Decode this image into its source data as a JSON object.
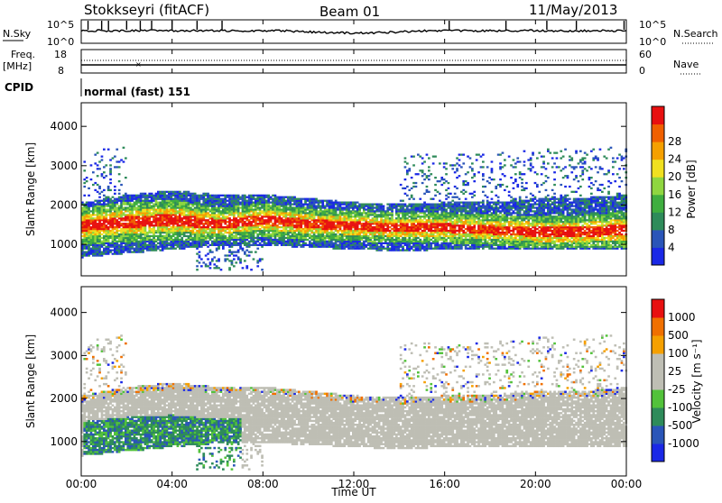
{
  "header": {
    "station": "Stokkseyri (fitACF)",
    "beam": "Beam 01",
    "date": "11/May/2013"
  },
  "time_axis": {
    "label": "Time UT",
    "ticks": [
      "00:00",
      "04:00",
      "08:00",
      "12:00",
      "16:00",
      "20:00",
      "00:00"
    ],
    "range_hours": [
      0,
      24
    ]
  },
  "top_panel": {
    "nsky_label": "N.Sky",
    "nsky_ticks": [
      "10^5",
      "10^0"
    ],
    "nsearch_label": "N.Search",
    "freq_label_1": "Freq.",
    "freq_label_2": "[MHz]",
    "freq_ticks": [
      "18",
      "8"
    ],
    "nave_label": "Nave",
    "nave_ticks": [
      "60",
      "0"
    ],
    "cpid_label": "CPID",
    "cpid_value": "normal (fast) 151"
  },
  "chart_data": [
    {
      "type": "heatmap",
      "name": "power",
      "ylabel": "Slant Range [km]",
      "y_ticks": [
        1000,
        2000,
        3000,
        4000
      ],
      "ylim": [
        200,
        4600
      ],
      "xlim": [
        0,
        24
      ],
      "colorbar_label": "Power [dB]",
      "colorbar_ticks": [
        "4",
        "8",
        "12",
        "16",
        "20",
        "24",
        "28"
      ],
      "colorbar_colors": [
        "#1a28e6",
        "#2a55b8",
        "#2e8b5a",
        "#3fae3f",
        "#8fd640",
        "#f0e020",
        "#f5a000",
        "#f06000",
        "#e81010"
      ],
      "range_band_km": [
        {
          "t": 0,
          "center": 1450,
          "edge_low": 800,
          "edge_high": 1900
        },
        {
          "t": 2,
          "center": 1550,
          "edge_low": 900,
          "edge_high": 2100
        },
        {
          "t": 4,
          "center": 1600,
          "edge_low": 1000,
          "edge_high": 2200
        },
        {
          "t": 6,
          "center": 1500,
          "edge_low": 1100,
          "edge_high": 2100
        },
        {
          "t": 8,
          "center": 1600,
          "edge_low": 1100,
          "edge_high": 2100
        },
        {
          "t": 10,
          "center": 1500,
          "edge_low": 1050,
          "edge_high": 2000
        },
        {
          "t": 12,
          "center": 1450,
          "edge_low": 1000,
          "edge_high": 1900
        },
        {
          "t": 14,
          "center": 1400,
          "edge_low": 950,
          "edge_high": 1850
        },
        {
          "t": 16,
          "center": 1400,
          "edge_low": 1000,
          "edge_high": 1900
        },
        {
          "t": 18,
          "center": 1350,
          "edge_low": 1000,
          "edge_high": 1900
        },
        {
          "t": 20,
          "center": 1300,
          "edge_low": 1000,
          "edge_high": 2000
        },
        {
          "t": 22,
          "center": 1300,
          "edge_low": 1000,
          "edge_high": 2000
        },
        {
          "t": 24,
          "center": 1350,
          "edge_low": 1000,
          "edge_high": 2100
        }
      ]
    },
    {
      "type": "heatmap",
      "name": "velocity",
      "ylabel": "Slant Range [km]",
      "y_ticks": [
        1000,
        2000,
        3000,
        4000
      ],
      "ylim": [
        200,
        4600
      ],
      "xlim": [
        0,
        24
      ],
      "colorbar_label": "Velocity [m s⁻¹]",
      "colorbar_ticks": [
        "1000",
        "500",
        "100",
        "25",
        "-25",
        "-100",
        "-500",
        "-1000"
      ],
      "colorbar_colors": [
        "#1a28e6",
        "#2a55b8",
        "#2e8b5a",
        "#52c23a",
        "#bebeb4",
        "#bebeb4",
        "#f5a000",
        "#f07000",
        "#e81010"
      ]
    }
  ],
  "colors": {
    "ground_scatter": "#bebeb4",
    "axis": "#000000"
  }
}
